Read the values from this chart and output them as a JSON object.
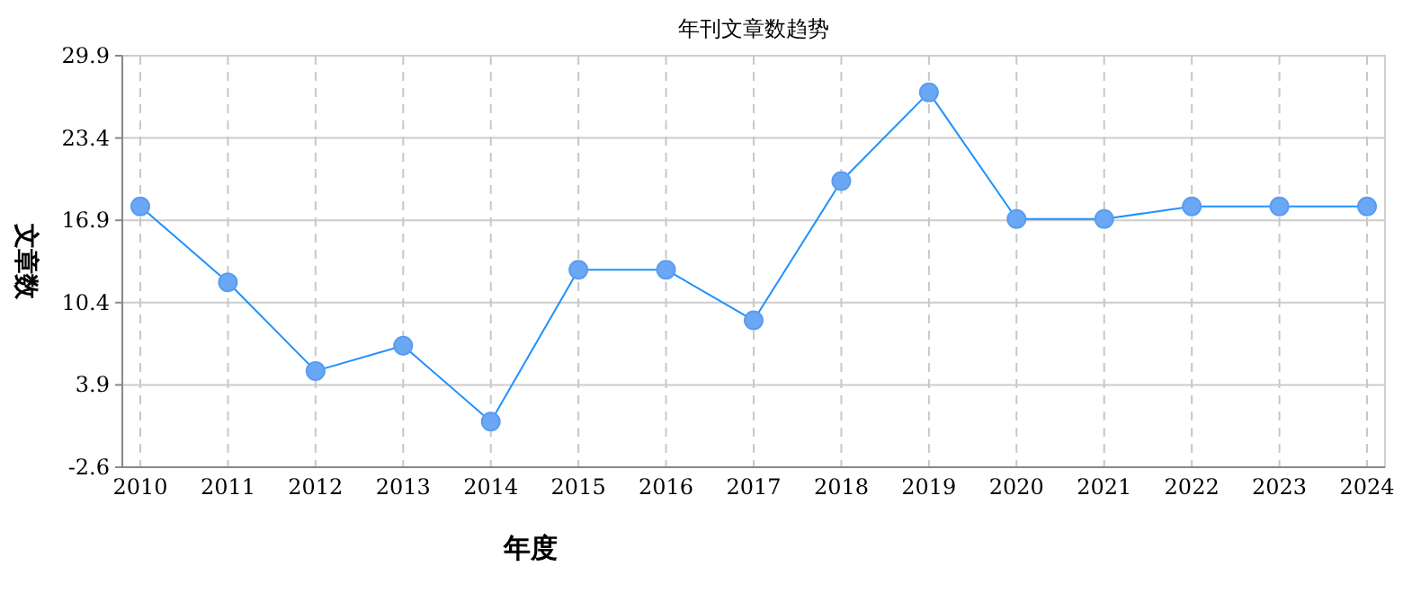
{
  "chart_data": {
    "type": "line",
    "title": "年刊文章数趋势",
    "xlabel": "年度",
    "ylabel": "文章数",
    "categories": [
      "2010",
      "2011",
      "2012",
      "2013",
      "2014",
      "2015",
      "2016",
      "2017",
      "2018",
      "2019",
      "2020",
      "2021",
      "2022",
      "2023",
      "2024"
    ],
    "series": [
      {
        "color": "#1e90ff",
        "values": [
          18,
          12,
          5,
          7,
          1,
          13,
          13,
          9,
          20,
          27,
          17,
          17,
          18,
          18,
          18
        ]
      }
    ],
    "ylim": [
      -2.6,
      29.9
    ],
    "yticks": [
      -2.6,
      3.9,
      10.4,
      16.9,
      23.4,
      29.9
    ],
    "grid": true,
    "marker": "circle",
    "line_style": "solid"
  }
}
